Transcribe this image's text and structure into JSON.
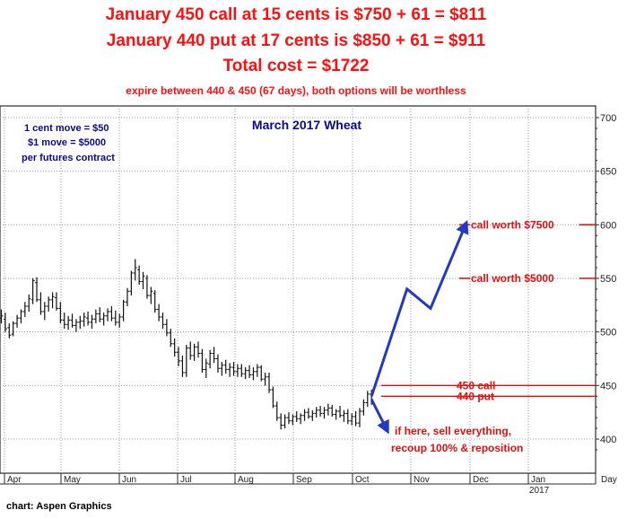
{
  "headline": {
    "line1": "January 450 call at 15 cents is $750 + 61 = $811",
    "line2": "January 440 put at 17 cents is $850 + 61 = $911",
    "line3": "Total cost = $1722",
    "line4": "expire between 440 & 450 (67 days), both options will be worthless"
  },
  "credit": "chart: Aspen Graphics",
  "colors": {
    "headline": "#ff1010",
    "note": "#0a0a8c",
    "bars": "#111111",
    "frame": "#2a2a2a",
    "grid": "#9a9a9a",
    "arrow": "#2438c8",
    "level": "#e01010"
  },
  "chart_data": {
    "type": "bar",
    "subtype": "ohlc",
    "title": "March 2017 Wheat",
    "note": [
      "1 cent move = $50",
      "$1 move = $5000",
      "per futures contract"
    ],
    "ylim": [
      380,
      710
    ],
    "y_ticks": [
      400,
      450,
      500,
      550,
      600,
      650,
      700
    ],
    "x_ticks": [
      "Apr",
      "May",
      "Jun",
      "Jul",
      "Aug",
      "Sep",
      "Oct",
      "Nov",
      "Dec",
      "Jan",
      "Day"
    ],
    "x_tick_sub": {
      "Jan": "2017"
    },
    "grid": true,
    "price_bars": [
      [
        0,
        513,
        521,
        508,
        515
      ],
      [
        1,
        512,
        518,
        500,
        503
      ],
      [
        2,
        504,
        508,
        494,
        497
      ],
      [
        3,
        498,
        510,
        496,
        508
      ],
      [
        4,
        508,
        516,
        504,
        513
      ],
      [
        5,
        513,
        521,
        508,
        519
      ],
      [
        6,
        519,
        528,
        514,
        524
      ],
      [
        7,
        524,
        535,
        519,
        531
      ],
      [
        8,
        530,
        550,
        526,
        548
      ],
      [
        9,
        546,
        551,
        528,
        530
      ],
      [
        10,
        530,
        537,
        516,
        519
      ],
      [
        11,
        519,
        528,
        511,
        524
      ],
      [
        12,
        524,
        533,
        519,
        530
      ],
      [
        13,
        530,
        537,
        522,
        533
      ],
      [
        14,
        532,
        537,
        520,
        522
      ],
      [
        15,
        522,
        528,
        508,
        511
      ],
      [
        16,
        511,
        518,
        503,
        507
      ],
      [
        17,
        507,
        515,
        502,
        511
      ],
      [
        18,
        511,
        517,
        504,
        506
      ],
      [
        19,
        506,
        512,
        500,
        509
      ],
      [
        20,
        509,
        515,
        503,
        510
      ],
      [
        21,
        510,
        518,
        505,
        514
      ],
      [
        22,
        513,
        519,
        506,
        509
      ],
      [
        23,
        509,
        516,
        503,
        512
      ],
      [
        24,
        512,
        521,
        508,
        517
      ],
      [
        25,
        517,
        523,
        509,
        512
      ],
      [
        26,
        512,
        518,
        506,
        515
      ],
      [
        27,
        515,
        522,
        510,
        519
      ],
      [
        28,
        519,
        524,
        510,
        513
      ],
      [
        29,
        513,
        520,
        506,
        509
      ],
      [
        30,
        509,
        517,
        504,
        514
      ],
      [
        31,
        514,
        530,
        510,
        528
      ],
      [
        32,
        528,
        541,
        524,
        538
      ],
      [
        33,
        538,
        557,
        534,
        555
      ],
      [
        34,
        555,
        568,
        548,
        560
      ],
      [
        35,
        558,
        562,
        544,
        547
      ],
      [
        36,
        547,
        556,
        540,
        552
      ],
      [
        37,
        550,
        553,
        531,
        534
      ],
      [
        38,
        534,
        542,
        526,
        538
      ],
      [
        39,
        536,
        539,
        518,
        521
      ],
      [
        40,
        521,
        526,
        510,
        514
      ],
      [
        41,
        514,
        518,
        503,
        507
      ],
      [
        42,
        507,
        512,
        496,
        499
      ],
      [
        43,
        499,
        503,
        486,
        489
      ],
      [
        44,
        489,
        494,
        477,
        481
      ],
      [
        45,
        481,
        486,
        468,
        473
      ],
      [
        46,
        473,
        478,
        458,
        462
      ],
      [
        47,
        462,
        488,
        458,
        485
      ],
      [
        48,
        485,
        491,
        474,
        478
      ],
      [
        49,
        478,
        489,
        473,
        486
      ],
      [
        50,
        486,
        491,
        476,
        480
      ],
      [
        51,
        480,
        484,
        462,
        465
      ],
      [
        52,
        465,
        475,
        457,
        471
      ],
      [
        53,
        470,
        483,
        466,
        480
      ],
      [
        54,
        480,
        486,
        471,
        475
      ],
      [
        55,
        475,
        479,
        462,
        466
      ],
      [
        56,
        466,
        472,
        459,
        469
      ],
      [
        57,
        469,
        474,
        461,
        465
      ],
      [
        58,
        465,
        471,
        458,
        467
      ],
      [
        59,
        467,
        472,
        459,
        463
      ],
      [
        60,
        463,
        470,
        458,
        466
      ],
      [
        61,
        466,
        470,
        458,
        461
      ],
      [
        62,
        461,
        467,
        456,
        464
      ],
      [
        63,
        464,
        469,
        457,
        460
      ],
      [
        64,
        460,
        467,
        455,
        463
      ],
      [
        65,
        463,
        470,
        458,
        467
      ],
      [
        66,
        467,
        469,
        454,
        456
      ],
      [
        67,
        456,
        462,
        450,
        458
      ],
      [
        68,
        458,
        462,
        443,
        446
      ],
      [
        69,
        446,
        449,
        429,
        431
      ],
      [
        70,
        431,
        435,
        417,
        420
      ],
      [
        71,
        420,
        424,
        409,
        413
      ],
      [
        72,
        413,
        423,
        410,
        420
      ],
      [
        73,
        420,
        425,
        414,
        417
      ],
      [
        74,
        417,
        423,
        413,
        421
      ],
      [
        75,
        421,
        426,
        416,
        419
      ],
      [
        76,
        419,
        424,
        414,
        422
      ],
      [
        77,
        422,
        428,
        417,
        425
      ],
      [
        78,
        425,
        429,
        419,
        421
      ],
      [
        79,
        421,
        427,
        417,
        424
      ],
      [
        80,
        424,
        430,
        420,
        427
      ],
      [
        81,
        427,
        431,
        421,
        424
      ],
      [
        82,
        424,
        430,
        419,
        427
      ],
      [
        83,
        427,
        433,
        422,
        429
      ],
      [
        84,
        429,
        432,
        421,
        423
      ],
      [
        85,
        423,
        428,
        418,
        426
      ],
      [
        86,
        426,
        431,
        420,
        422
      ],
      [
        87,
        422,
        427,
        416,
        424
      ],
      [
        88,
        424,
        428,
        414,
        417
      ],
      [
        89,
        417,
        424,
        413,
        421
      ],
      [
        90,
        421,
        426,
        412,
        415
      ],
      [
        91,
        415,
        429,
        411,
        426
      ],
      [
        92,
        426,
        437,
        422,
        434
      ],
      [
        93,
        434,
        445,
        430,
        442
      ],
      [
        94,
        442,
        446,
        432,
        437
      ]
    ],
    "projection": {
      "up_path": [
        [
          94,
          440
        ],
        [
          103,
          540
        ],
        [
          109,
          522
        ],
        [
          118,
          601
        ]
      ],
      "down_path": [
        [
          94,
          437
        ],
        [
          98,
          408
        ]
      ]
    },
    "levels": [
      {
        "label": "call worth $7500",
        "value": 600
      },
      {
        "label": "call worth $5000",
        "value": 550
      },
      {
        "label": "450 call",
        "value": 450
      },
      {
        "label": "440 put",
        "value": 440
      }
    ],
    "annotations": [
      "if here, sell everything,",
      "recoup 100% & reposition"
    ]
  }
}
